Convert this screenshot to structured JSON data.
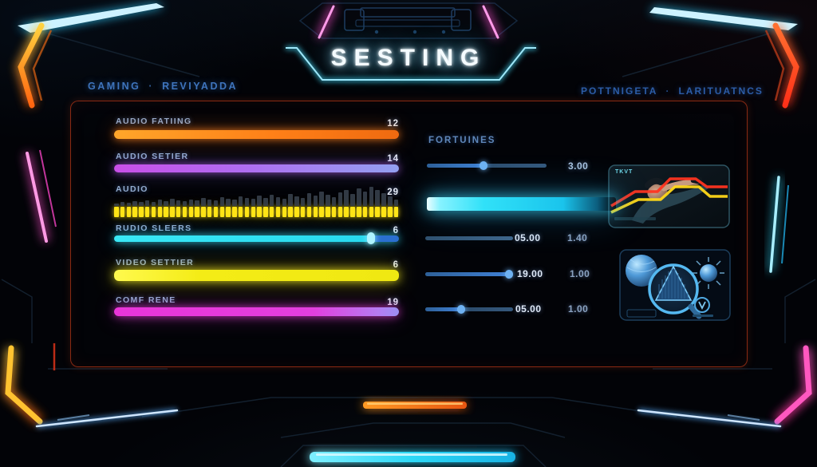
{
  "header": {
    "title": "SESTING",
    "nav_left": {
      "item1": "GAMING",
      "separator": "·",
      "item2": "REVIYADDA"
    },
    "nav_right": {
      "item1": "POTTNIGETA",
      "separator": "·",
      "item2": "LARITUATNCS"
    }
  },
  "settings": {
    "rows": [
      {
        "label": "AUDIO FATIING",
        "value": "12",
        "color": "#ff8018",
        "type": "bar"
      },
      {
        "label": "AUDIO SETIER",
        "value": "14",
        "color": "#b06cf0",
        "type": "bar"
      },
      {
        "label": "AUDIO",
        "value": "29",
        "color": "#ffe518",
        "type": "equalizer"
      },
      {
        "label": "RUDIO SLEERS",
        "value": "6",
        "color": "#2fe0f2",
        "type": "slider"
      },
      {
        "label": "VIDEO SETTIER",
        "value": "6",
        "color": "#f2ea14",
        "type": "bar"
      },
      {
        "label": "COMF RENE",
        "value": "19",
        "color": "#e23fde",
        "type": "bar"
      }
    ]
  },
  "right_panel": {
    "title": "FORTUINES",
    "slider1": {
      "value": "3.00"
    },
    "slider2": {
      "value": "05.00",
      "value2": "1.40"
    },
    "slider3": {
      "value": "19.00",
      "value2": "1.00"
    },
    "slider4": {
      "value": "05.00",
      "value2": "1.00"
    }
  },
  "thumbnails": {
    "card1_tag": "TKVT"
  },
  "equalizer": {
    "segments": 46,
    "bg_heights": [
      3,
      5,
      4,
      6,
      5,
      7,
      5,
      8,
      6,
      9,
      7,
      6,
      8,
      7,
      10,
      8,
      7,
      11,
      9,
      8,
      12,
      10,
      9,
      13,
      10,
      14,
      11,
      9,
      15,
      12,
      10,
      16,
      13,
      18,
      14,
      11,
      17,
      20,
      15,
      22,
      18,
      24,
      20,
      16,
      12,
      8
    ]
  },
  "colors": {
    "title_glow": "#3ac4ff",
    "panel_outline": "#a0301 6",
    "glow_bar": "#31e1f8",
    "nav_text": "#3e74bc"
  }
}
